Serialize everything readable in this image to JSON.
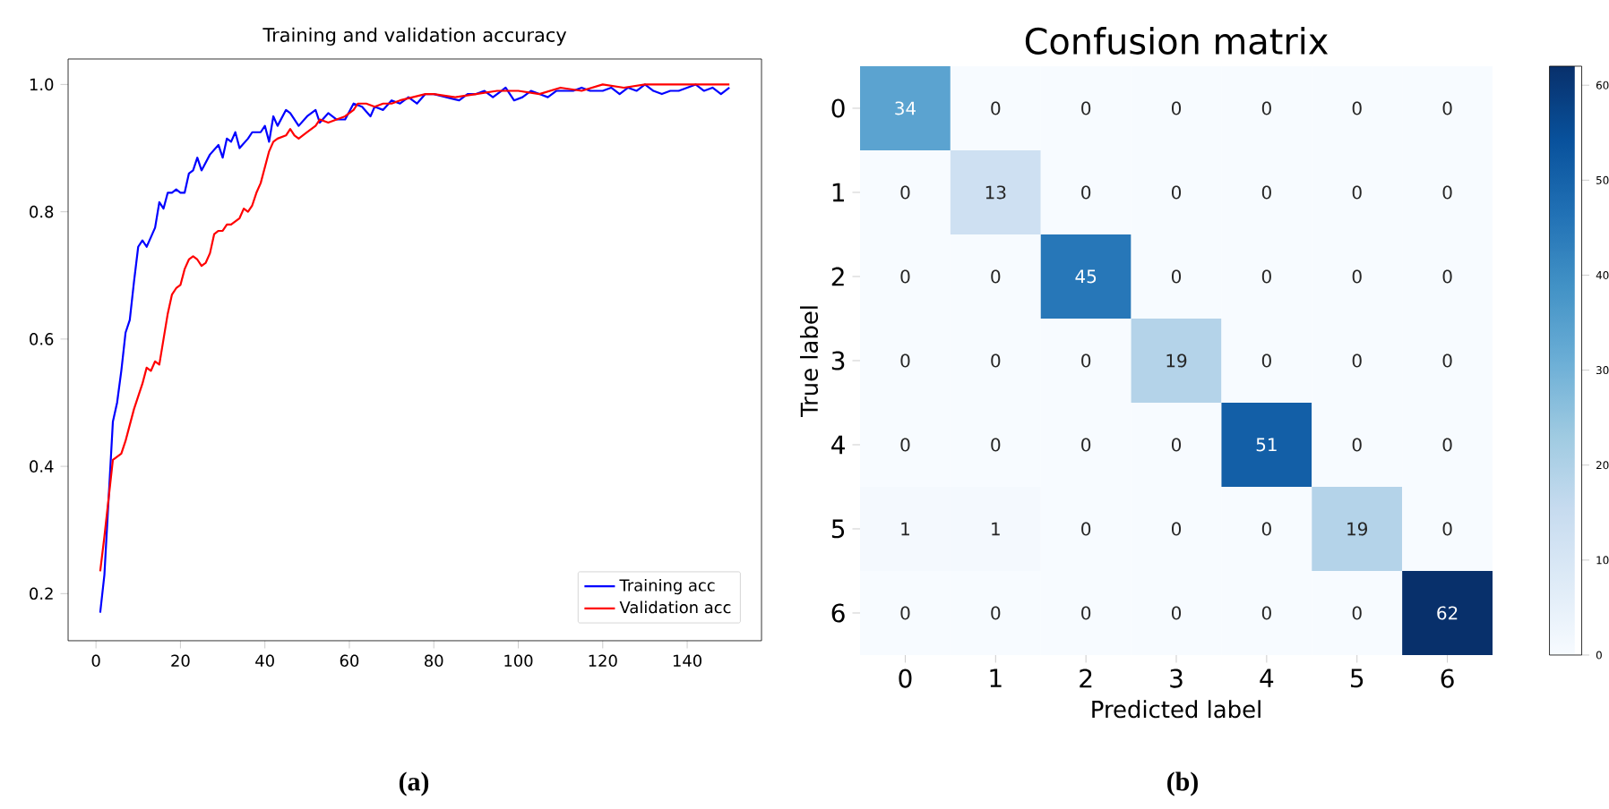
{
  "chart_data": [
    {
      "type": "line",
      "title": "Training and validation accuracy",
      "annotations": [
        "(a)"
      ],
      "xlim": [
        -6.6,
        157.6
      ],
      "ylim": [
        0.126,
        1.04
      ],
      "xticks": [
        0,
        20,
        40,
        60,
        80,
        100,
        120,
        140
      ],
      "yticks": [
        0.2,
        0.4,
        0.6,
        0.8,
        {
          "value": 1,
          "label": "1.0"
        }
      ],
      "legend": "bottom right",
      "marker": "none",
      "line_style": "solid",
      "series": [
        {
          "name": "Training acc",
          "color": "#0000ff",
          "x": [
            1,
            2,
            3,
            4,
            5,
            6,
            7,
            8,
            9,
            10,
            11,
            12,
            13,
            14,
            15,
            16,
            17,
            18,
            19,
            20,
            21,
            22,
            23,
            24,
            25,
            27,
            29,
            30,
            31,
            32,
            33,
            34,
            36,
            37,
            39,
            40,
            41,
            42,
            43,
            45,
            46,
            48,
            50,
            52,
            53,
            55,
            57,
            59,
            61,
            63,
            65,
            66,
            68,
            70,
            72,
            74,
            76,
            78,
            80,
            83,
            86,
            88,
            90,
            92,
            94,
            96,
            97,
            99,
            101,
            103,
            105,
            107,
            109,
            111,
            113,
            115,
            117,
            120,
            122,
            124,
            126,
            128,
            130,
            132,
            134,
            136,
            138,
            140,
            142,
            144,
            146,
            148,
            150
          ],
          "values": [
            0.17,
            0.23,
            0.35,
            0.47,
            0.5,
            0.55,
            0.61,
            0.63,
            0.69,
            0.745,
            0.755,
            0.745,
            0.76,
            0.775,
            0.815,
            0.805,
            0.83,
            0.83,
            0.835,
            0.83,
            0.83,
            0.86,
            0.865,
            0.885,
            0.865,
            0.89,
            0.905,
            0.885,
            0.915,
            0.91,
            0.925,
            0.9,
            0.915,
            0.925,
            0.925,
            0.935,
            0.91,
            0.95,
            0.935,
            0.96,
            0.955,
            0.935,
            0.95,
            0.96,
            0.94,
            0.955,
            0.945,
            0.945,
            0.97,
            0.965,
            0.95,
            0.965,
            0.96,
            0.975,
            0.97,
            0.98,
            0.97,
            0.985,
            0.985,
            0.98,
            0.975,
            0.985,
            0.985,
            0.99,
            0.98,
            0.99,
            0.995,
            0.975,
            0.98,
            0.99,
            0.985,
            0.98,
            0.99,
            0.99,
            0.99,
            0.995,
            0.99,
            0.99,
            0.995,
            0.985,
            0.995,
            0.99,
            1.0,
            0.99,
            0.985,
            0.99,
            0.99,
            0.995,
            1.0,
            0.99,
            0.995,
            0.985,
            0.995
          ]
        },
        {
          "name": "Validation acc",
          "color": "#ff0000",
          "x": [
            1,
            2,
            3,
            4,
            5,
            6,
            7,
            8,
            9,
            10,
            11,
            12,
            13,
            14,
            15,
            16,
            17,
            18,
            19,
            20,
            21,
            22,
            23,
            24,
            25,
            26,
            27,
            28,
            29,
            30,
            31,
            32,
            33,
            34,
            35,
            36,
            37,
            38,
            39,
            40,
            41,
            42,
            43,
            45,
            46,
            47,
            48,
            50,
            52,
            53,
            55,
            57,
            59,
            61,
            62,
            64,
            66,
            68,
            70,
            72,
            75,
            78,
            80,
            85,
            90,
            95,
            100,
            105,
            110,
            115,
            120,
            125,
            130,
            135,
            140,
            145,
            150
          ],
          "values": [
            0.235,
            0.29,
            0.35,
            0.41,
            0.415,
            0.42,
            0.44,
            0.465,
            0.49,
            0.51,
            0.53,
            0.555,
            0.55,
            0.565,
            0.56,
            0.6,
            0.64,
            0.67,
            0.68,
            0.685,
            0.71,
            0.725,
            0.73,
            0.725,
            0.715,
            0.72,
            0.735,
            0.765,
            0.77,
            0.77,
            0.78,
            0.78,
            0.785,
            0.79,
            0.805,
            0.8,
            0.81,
            0.83,
            0.845,
            0.87,
            0.895,
            0.91,
            0.915,
            0.92,
            0.93,
            0.92,
            0.915,
            0.925,
            0.935,
            0.945,
            0.94,
            0.945,
            0.95,
            0.96,
            0.97,
            0.97,
            0.965,
            0.97,
            0.97,
            0.975,
            0.98,
            0.985,
            0.985,
            0.98,
            0.985,
            0.99,
            0.99,
            0.985,
            0.995,
            0.99,
            1.0,
            0.995,
            1.0,
            1.0,
            1.0,
            1.0,
            1.0
          ]
        }
      ]
    },
    {
      "type": "heatmap",
      "title": "Confusion matrix",
      "xlabel": "Predicted label",
      "ylabel": "True label",
      "annotations": [
        "(b)"
      ],
      "data_labels": true,
      "categories": [
        "0",
        "1",
        "2",
        "3",
        "4",
        "5",
        "6"
      ],
      "y_categories": [
        "0",
        "1",
        "2",
        "3",
        "4",
        "5",
        "6"
      ],
      "cells": [
        [
          34,
          0,
          0,
          0,
          0,
          0,
          0
        ],
        [
          0,
          13,
          0,
          0,
          0,
          0,
          0
        ],
        [
          0,
          0,
          45,
          0,
          0,
          0,
          0
        ],
        [
          0,
          0,
          0,
          19,
          0,
          0,
          0
        ],
        [
          0,
          0,
          0,
          0,
          51,
          0,
          0
        ],
        [
          1,
          1,
          0,
          0,
          0,
          19,
          0
        ],
        [
          0,
          0,
          0,
          0,
          0,
          0,
          62
        ]
      ],
      "clim": [
        0,
        62
      ],
      "cticks": [
        0,
        10,
        20,
        30,
        40,
        50,
        60
      ]
    }
  ]
}
